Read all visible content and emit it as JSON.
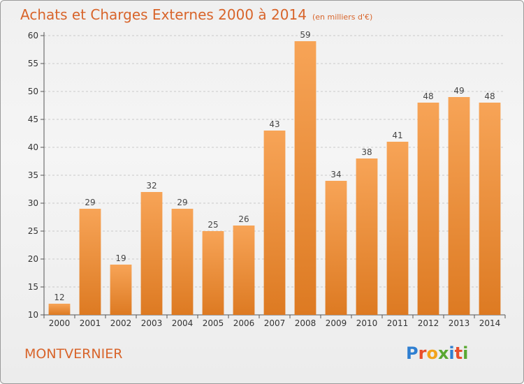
{
  "header": {
    "title": "Achats et Charges Externes 2000 à 2014",
    "subtitle": "(en milliers d'€)"
  },
  "footer": {
    "commune": "MONTVERNIER",
    "logo": "Proxiti"
  },
  "colors": {
    "bar_top": "#f7a457",
    "bar_bottom": "#dd7a22",
    "text_accent": "#d8642a"
  },
  "chart_data": {
    "type": "bar",
    "categories": [
      "2000",
      "2001",
      "2002",
      "2003",
      "2004",
      "2005",
      "2006",
      "2007",
      "2008",
      "2009",
      "2010",
      "2011",
      "2012",
      "2013",
      "2014"
    ],
    "values": [
      12,
      29,
      19,
      32,
      29,
      25,
      26,
      43,
      59,
      34,
      38,
      41,
      48,
      49,
      48
    ],
    "title": "Achats et Charges Externes 2000 à 2014",
    "xlabel": "",
    "ylabel": "",
    "ylim": [
      10,
      60
    ],
    "yticks": [
      10,
      15,
      20,
      25,
      30,
      35,
      40,
      45,
      50,
      55,
      60
    ],
    "grid": true
  }
}
